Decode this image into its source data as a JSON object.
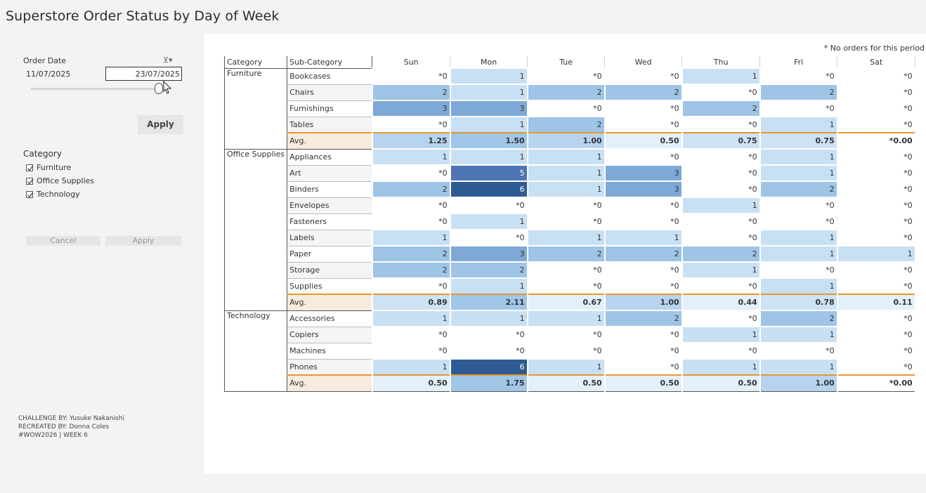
{
  "title": "Superstore Order Status by Day of Week",
  "note": "* No orders for this period",
  "filters": {
    "order_date_label": "Order Date",
    "start_date": "11/07/2025",
    "end_date": "23/07/2025",
    "apply_label": "Apply",
    "category_label": "Category",
    "categories": [
      {
        "label": "Furniture",
        "checked": true
      },
      {
        "label": "Office Supplies",
        "checked": true
      },
      {
        "label": "Technology",
        "checked": true
      }
    ],
    "cancel_label": "Cancel",
    "apply2_label": "Apply"
  },
  "credits": {
    "line1": "CHALLENGE BY: Yusuke Nakanishi",
    "line2": "RECREATED BY: Donna Coles",
    "line3": "#WOW2026 | WEEK 6"
  },
  "table": {
    "header_category": "Category",
    "header_subcategory": "Sub-Category",
    "days": [
      "Sun",
      "Mon",
      "Tue",
      "Wed",
      "Thu",
      "Fri",
      "Sat"
    ],
    "groups": [
      {
        "category": "Furniture",
        "rows": [
          {
            "sub": "Bookcases",
            "cells": [
              "*0",
              "1",
              "*0",
              "*0",
              "1",
              "*0",
              "*0"
            ]
          },
          {
            "sub": "Chairs",
            "cells": [
              "2",
              "1",
              "2",
              "2",
              "*0",
              "2",
              "*0"
            ]
          },
          {
            "sub": "Furnishings",
            "cells": [
              "3",
              "3",
              "*0",
              "*0",
              "2",
              "*0",
              "*0"
            ]
          },
          {
            "sub": "Tables",
            "cells": [
              "*0",
              "1",
              "2",
              "*0",
              "*0",
              "1",
              "*0"
            ]
          }
        ],
        "avg": {
          "label": "Avg.",
          "cells": [
            "1.25",
            "1.50",
            "1.00",
            "0.50",
            "0.75",
            "0.75",
            "*0.00"
          ]
        }
      },
      {
        "category": "Office Supplies",
        "rows": [
          {
            "sub": "Appliances",
            "cells": [
              "1",
              "1",
              "1",
              "*0",
              "*0",
              "1",
              "*0"
            ]
          },
          {
            "sub": "Art",
            "cells": [
              "*0",
              "5",
              "1",
              "3",
              "*0",
              "1",
              "*0"
            ]
          },
          {
            "sub": "Binders",
            "cells": [
              "2",
              "6",
              "1",
              "3",
              "*0",
              "2",
              "*0"
            ]
          },
          {
            "sub": "Envelopes",
            "cells": [
              "*0",
              "*0",
              "*0",
              "*0",
              "1",
              "*0",
              "*0"
            ]
          },
          {
            "sub": "Fasteners",
            "cells": [
              "*0",
              "1",
              "*0",
              "*0",
              "*0",
              "*0",
              "*0"
            ]
          },
          {
            "sub": "Labels",
            "cells": [
              "1",
              "*0",
              "1",
              "1",
              "*0",
              "1",
              "*0"
            ]
          },
          {
            "sub": "Paper",
            "cells": [
              "2",
              "3",
              "2",
              "2",
              "2",
              "1",
              "1"
            ]
          },
          {
            "sub": "Storage",
            "cells": [
              "2",
              "2",
              "*0",
              "*0",
              "1",
              "*0",
              "*0"
            ]
          },
          {
            "sub": "Supplies",
            "cells": [
              "*0",
              "1",
              "*0",
              "*0",
              "*0",
              "1",
              "*0"
            ]
          }
        ],
        "avg": {
          "label": "Avg.",
          "cells": [
            "0.89",
            "2.11",
            "0.67",
            "1.00",
            "0.44",
            "0.78",
            "0.11"
          ]
        }
      },
      {
        "category": "Technology",
        "rows": [
          {
            "sub": "Accessories",
            "cells": [
              "1",
              "1",
              "1",
              "2",
              "*0",
              "2",
              "*0"
            ]
          },
          {
            "sub": "Copiers",
            "cells": [
              "*0",
              "*0",
              "*0",
              "*0",
              "1",
              "1",
              "*0"
            ]
          },
          {
            "sub": "Machines",
            "cells": [
              "*0",
              "*0",
              "*0",
              "*0",
              "*0",
              "*0",
              "*0"
            ]
          },
          {
            "sub": "Phones",
            "cells": [
              "1",
              "6",
              "1",
              "*0",
              "1",
              "1",
              "*0"
            ]
          }
        ],
        "avg": {
          "label": "Avg.",
          "cells": [
            "0.50",
            "1.75",
            "0.50",
            "0.50",
            "0.50",
            "1.00",
            "*0.00"
          ]
        }
      }
    ]
  },
  "colors": {
    "accent_orange": "#e8962e",
    "heat_low": "#c8e0f4",
    "heat_high": "#2f5b94"
  }
}
